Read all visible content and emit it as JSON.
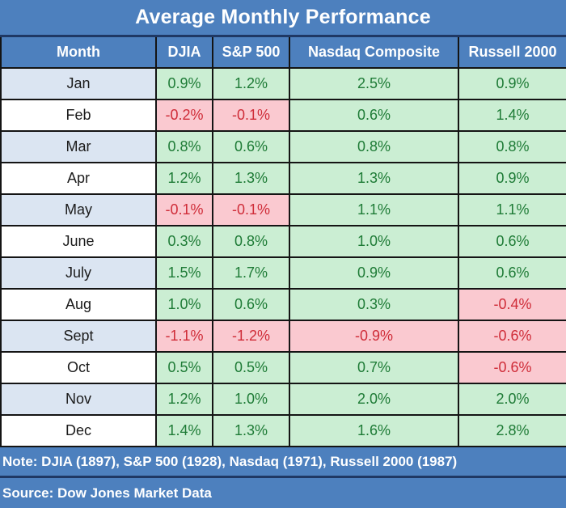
{
  "title": "Average Monthly Performance",
  "footer": {
    "note": "Note: DJIA (1897), S&P 500 (1928), Nasdaq (1971), Russell 2000 (1987)",
    "source": "Source: Dow Jones Market Data"
  },
  "colors": {
    "header_blue": "#4d80be",
    "divider_navy": "#1f3864",
    "grid_black": "#141414",
    "positive_bg": "#cbeed3",
    "positive_text": "#1e7b36",
    "negative_bg": "#fac9d0",
    "negative_text": "#cf2c38",
    "month_alt_bg": "#dbe5f2",
    "month_bg": "#ffffff",
    "header_text": "#ffffff"
  },
  "chart_data": {
    "type": "table",
    "title": "Average Monthly Performance",
    "columns": [
      "Month",
      "DJIA",
      "S&P 500",
      "Nasdaq Composite",
      "Russell 2000"
    ],
    "rows": [
      [
        "Jan",
        "0.9%",
        "1.2%",
        "2.5%",
        "0.9%"
      ],
      [
        "Feb",
        "-0.2%",
        "-0.1%",
        "0.6%",
        "1.4%"
      ],
      [
        "Mar",
        "0.8%",
        "0.6%",
        "0.8%",
        "0.8%"
      ],
      [
        "Apr",
        "1.2%",
        "1.3%",
        "1.3%",
        "0.9%"
      ],
      [
        "May",
        "-0.1%",
        "-0.1%",
        "1.1%",
        "1.1%"
      ],
      [
        "June",
        "0.3%",
        "0.8%",
        "1.0%",
        "0.6%"
      ],
      [
        "July",
        "1.5%",
        "1.7%",
        "0.9%",
        "0.6%"
      ],
      [
        "Aug",
        "1.0%",
        "0.6%",
        "0.3%",
        "-0.4%"
      ],
      [
        "Sept",
        "-1.1%",
        "-1.2%",
        "-0.9%",
        "-0.6%"
      ],
      [
        "Oct",
        "0.5%",
        "0.5%",
        "0.7%",
        "-0.6%"
      ],
      [
        "Nov",
        "1.2%",
        "1.0%",
        "2.0%",
        "2.0%"
      ],
      [
        "Dec",
        "1.4%",
        "1.3%",
        "1.6%",
        "2.8%"
      ]
    ],
    "series": [
      {
        "name": "DJIA",
        "values": [
          0.9,
          -0.2,
          0.8,
          1.2,
          -0.1,
          0.3,
          1.5,
          1.0,
          -1.1,
          0.5,
          1.2,
          1.4
        ]
      },
      {
        "name": "S&P 500",
        "values": [
          1.2,
          -0.1,
          0.6,
          1.3,
          -0.1,
          0.8,
          1.7,
          0.6,
          -1.2,
          0.5,
          1.0,
          1.3
        ]
      },
      {
        "name": "Nasdaq Composite",
        "values": [
          2.5,
          0.6,
          0.8,
          1.3,
          1.1,
          1.0,
          0.9,
          0.3,
          -0.9,
          0.7,
          2.0,
          1.6
        ]
      },
      {
        "name": "Russell 2000",
        "values": [
          0.9,
          1.4,
          0.8,
          0.9,
          1.1,
          0.6,
          0.6,
          -0.4,
          -0.6,
          -0.6,
          2.0,
          2.8
        ]
      }
    ],
    "categories": [
      "Jan",
      "Feb",
      "Mar",
      "Apr",
      "May",
      "June",
      "July",
      "Aug",
      "Sept",
      "Oct",
      "Nov",
      "Dec"
    ],
    "units": "percent",
    "note": "Note: DJIA (1897), S&P 500 (1928), Nasdaq (1971), Russell 2000 (1987)",
    "source": "Source: Dow Jones Market Data"
  }
}
